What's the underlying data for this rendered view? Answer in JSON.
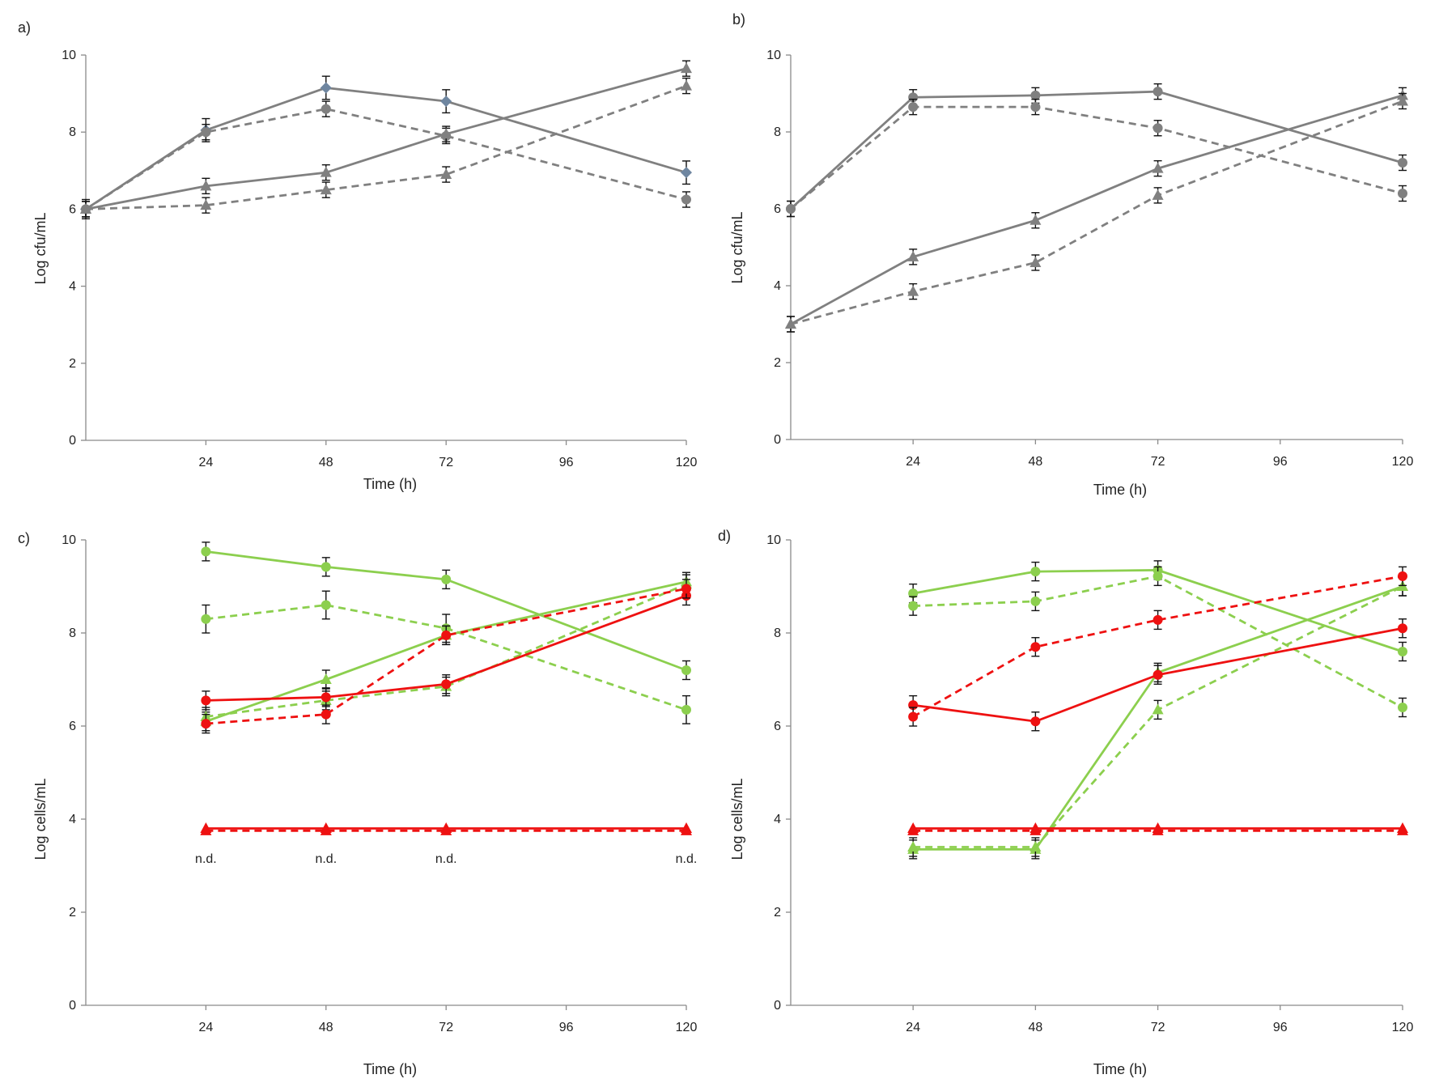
{
  "chart_data": [
    {
      "type": "line",
      "panel_label": "a)",
      "xlabel": "Time (h)",
      "ylabel": "Log cfu/mL",
      "xlim": [
        0,
        120
      ],
      "ylim": [
        0,
        10
      ],
      "xticks": [
        24,
        48,
        72,
        96,
        120
      ],
      "yticks": [
        0,
        2,
        4,
        6,
        8,
        10
      ],
      "notes": [],
      "series": [
        {
          "name": "series-1",
          "color": "#808080",
          "dash": "solid",
          "marker": "diamond",
          "marker_color": "#6f86a0",
          "x": [
            0,
            24,
            48,
            72,
            120
          ],
          "values": [
            6.0,
            8.05,
            9.15,
            8.8,
            6.95
          ],
          "errors": [
            0.25,
            0.3,
            0.3,
            0.3,
            0.3
          ]
        },
        {
          "name": "series-2",
          "color": "#808080",
          "dash": "dashed",
          "marker": "circle",
          "marker_color": "#808080",
          "x": [
            0,
            24,
            48,
            72,
            120
          ],
          "values": [
            6.0,
            8.0,
            8.6,
            7.9,
            6.25
          ],
          "errors": [
            0.2,
            0.2,
            0.2,
            0.2,
            0.2
          ]
        },
        {
          "name": "series-3",
          "color": "#808080",
          "dash": "solid",
          "marker": "triangle",
          "marker_color": "#808080",
          "x": [
            0,
            24,
            48,
            72,
            120
          ],
          "values": [
            6.0,
            6.6,
            6.95,
            7.95,
            9.65
          ],
          "errors": [
            0.2,
            0.2,
            0.2,
            0.2,
            0.2
          ]
        },
        {
          "name": "series-4",
          "color": "#808080",
          "dash": "dashed",
          "marker": "triangle",
          "marker_color": "#808080",
          "x": [
            0,
            24,
            48,
            72,
            120
          ],
          "values": [
            6.0,
            6.1,
            6.5,
            6.9,
            9.2
          ],
          "errors": [
            0.2,
            0.2,
            0.2,
            0.2,
            0.2
          ]
        }
      ]
    },
    {
      "type": "line",
      "panel_label": "b)",
      "xlabel": "Time (h)",
      "ylabel": "Log cfu/mL",
      "xlim": [
        0,
        120
      ],
      "ylim": [
        0,
        10
      ],
      "xticks": [
        24,
        48,
        72,
        96,
        120
      ],
      "yticks": [
        0,
        2,
        4,
        6,
        8,
        10
      ],
      "notes": [],
      "series": [
        {
          "name": "series-1",
          "color": "#808080",
          "dash": "solid",
          "marker": "circle",
          "marker_color": "#808080",
          "x": [
            0,
            24,
            48,
            72,
            120
          ],
          "values": [
            6.0,
            8.9,
            8.95,
            9.05,
            7.2
          ],
          "errors": [
            0.2,
            0.2,
            0.2,
            0.2,
            0.2
          ]
        },
        {
          "name": "series-2",
          "color": "#808080",
          "dash": "dashed",
          "marker": "circle",
          "marker_color": "#808080",
          "x": [
            0,
            24,
            48,
            72,
            120
          ],
          "values": [
            6.0,
            8.65,
            8.65,
            8.1,
            6.4
          ],
          "errors": [
            0.2,
            0.2,
            0.2,
            0.2,
            0.2
          ]
        },
        {
          "name": "series-3",
          "color": "#808080",
          "dash": "solid",
          "marker": "triangle",
          "marker_color": "#808080",
          "x": [
            0,
            24,
            48,
            72,
            120
          ],
          "values": [
            3.0,
            4.75,
            5.7,
            7.05,
            8.95
          ],
          "errors": [
            0.2,
            0.2,
            0.2,
            0.2,
            0.2
          ]
        },
        {
          "name": "series-4",
          "color": "#808080",
          "dash": "dashed",
          "marker": "triangle",
          "marker_color": "#808080",
          "x": [
            0,
            24,
            48,
            72,
            120
          ],
          "values": [
            3.0,
            3.85,
            4.6,
            6.35,
            8.8
          ],
          "errors": [
            0.2,
            0.2,
            0.2,
            0.2,
            0.2
          ]
        }
      ]
    },
    {
      "type": "line",
      "panel_label": "c)",
      "xlabel": "Time (h)",
      "ylabel": "Log cells/mL",
      "xlim": [
        0,
        120
      ],
      "ylim": [
        0,
        10
      ],
      "xticks": [
        24,
        48,
        72,
        96,
        120
      ],
      "yticks": [
        0,
        2,
        4,
        6,
        8,
        10
      ],
      "notes": [
        {
          "text": "n.d.",
          "x": 24,
          "y": 3.15
        },
        {
          "text": "n.d.",
          "x": 48,
          "y": 3.15
        },
        {
          "text": "n.d.",
          "x": 72,
          "y": 3.15
        },
        {
          "text": "n.d.",
          "x": 120,
          "y": 3.15
        }
      ],
      "series": [
        {
          "name": "green-solid-circle",
          "color": "#8ccf4e",
          "dash": "solid",
          "marker": "circle",
          "marker_color": "#8ccf4e",
          "x": [
            24,
            48,
            72,
            120
          ],
          "values": [
            9.75,
            9.42,
            9.15,
            7.2
          ],
          "errors": [
            0.2,
            0.2,
            0.2,
            0.2
          ]
        },
        {
          "name": "green-dashed-circle",
          "color": "#8ccf4e",
          "dash": "dashed",
          "marker": "circle",
          "marker_color": "#8ccf4e",
          "x": [
            24,
            48,
            72,
            120
          ],
          "values": [
            8.3,
            8.6,
            8.1,
            6.35
          ],
          "errors": [
            0.3,
            0.3,
            0.3,
            0.3
          ]
        },
        {
          "name": "green-solid-triangle",
          "color": "#8ccf4e",
          "dash": "solid",
          "marker": "triangle",
          "marker_color": "#8ccf4e",
          "x": [
            24,
            48,
            72,
            120
          ],
          "values": [
            6.1,
            7.0,
            7.95,
            9.1
          ],
          "errors": [
            0.2,
            0.2,
            0.2,
            0.2
          ]
        },
        {
          "name": "green-dashed-triangle",
          "color": "#8ccf4e",
          "dash": "dashed",
          "marker": "triangle",
          "marker_color": "#8ccf4e",
          "x": [
            24,
            48,
            72,
            120
          ],
          "values": [
            6.2,
            6.55,
            6.85,
            9.05
          ],
          "errors": [
            0.2,
            0.2,
            0.2,
            0.2
          ]
        },
        {
          "name": "red-solid-circle",
          "color": "#ee1111",
          "dash": "solid",
          "marker": "circle",
          "marker_color": "#ee1111",
          "x": [
            24,
            48,
            72,
            120
          ],
          "values": [
            6.55,
            6.62,
            6.9,
            8.8
          ],
          "errors": [
            0.2,
            0.2,
            0.2,
            0.2
          ]
        },
        {
          "name": "red-dashed-circle",
          "color": "#ee1111",
          "dash": "dashed",
          "marker": "circle",
          "marker_color": "#ee1111",
          "x": [
            24,
            48,
            72,
            120
          ],
          "values": [
            6.05,
            6.25,
            7.95,
            8.95
          ],
          "errors": [
            0.2,
            0.2,
            0.2,
            0.2
          ]
        },
        {
          "name": "red-solid-triangle",
          "color": "#ee1111",
          "dash": "solid",
          "marker": "triangle",
          "marker_color": "#ee1111",
          "x": [
            24,
            48,
            72,
            120
          ],
          "values": [
            3.8,
            3.8,
            3.8,
            3.8
          ],
          "errors": [
            0,
            0,
            0,
            0
          ]
        },
        {
          "name": "red-dashed-triangle",
          "color": "#ee1111",
          "dash": "dashed",
          "marker": "triangle",
          "marker_color": "#ee1111",
          "x": [
            24,
            48,
            72,
            120
          ],
          "values": [
            3.75,
            3.75,
            3.75,
            3.75
          ],
          "errors": [
            0,
            0,
            0,
            0
          ]
        }
      ]
    },
    {
      "type": "line",
      "panel_label": "d)",
      "xlabel": "Time (h)",
      "ylabel": "Log cells/mL",
      "xlim": [
        0,
        120
      ],
      "ylim": [
        0,
        10
      ],
      "xticks": [
        24,
        48,
        72,
        96,
        120
      ],
      "yticks": [
        0,
        2,
        4,
        6,
        8,
        10
      ],
      "notes": [],
      "series": [
        {
          "name": "green-solid-circle",
          "color": "#8ccf4e",
          "dash": "solid",
          "marker": "circle",
          "marker_color": "#8ccf4e",
          "x": [
            24,
            48,
            72,
            120
          ],
          "values": [
            8.85,
            9.32,
            9.35,
            7.6
          ],
          "errors": [
            0.2,
            0.2,
            0.2,
            0.2
          ]
        },
        {
          "name": "green-dashed-circle",
          "color": "#8ccf4e",
          "dash": "dashed",
          "marker": "circle",
          "marker_color": "#8ccf4e",
          "x": [
            24,
            48,
            72,
            120
          ],
          "values": [
            8.58,
            8.68,
            9.22,
            6.4
          ],
          "errors": [
            0.2,
            0.2,
            0.2,
            0.2
          ]
        },
        {
          "name": "green-solid-triangle",
          "color": "#8ccf4e",
          "dash": "solid",
          "marker": "triangle",
          "marker_color": "#8ccf4e",
          "x": [
            24,
            48,
            72,
            120
          ],
          "values": [
            3.35,
            3.35,
            7.15,
            9.0
          ],
          "errors": [
            0.2,
            0.2,
            0.2,
            0.2
          ]
        },
        {
          "name": "green-dashed-triangle",
          "color": "#8ccf4e",
          "dash": "dashed",
          "marker": "triangle",
          "marker_color": "#8ccf4e",
          "x": [
            24,
            48,
            72,
            120
          ],
          "values": [
            3.4,
            3.4,
            6.35,
            9.0
          ],
          "errors": [
            0.2,
            0.2,
            0.2,
            0.2
          ]
        },
        {
          "name": "red-solid-circle",
          "color": "#ee1111",
          "dash": "solid",
          "marker": "circle",
          "marker_color": "#ee1111",
          "x": [
            24,
            48,
            72,
            120
          ],
          "values": [
            6.45,
            6.1,
            7.1,
            8.1
          ],
          "errors": [
            0.2,
            0.2,
            0.2,
            0.2
          ]
        },
        {
          "name": "red-dashed-circle",
          "color": "#ee1111",
          "dash": "dashed",
          "marker": "circle",
          "marker_color": "#ee1111",
          "x": [
            24,
            48,
            72,
            120
          ],
          "values": [
            6.2,
            7.7,
            8.28,
            9.22
          ],
          "errors": [
            0.2,
            0.2,
            0.2,
            0.2
          ]
        },
        {
          "name": "red-solid-triangle",
          "color": "#ee1111",
          "dash": "solid",
          "marker": "triangle",
          "marker_color": "#ee1111",
          "x": [
            24,
            48,
            72,
            120
          ],
          "values": [
            3.8,
            3.8,
            3.8,
            3.8
          ],
          "errors": [
            0,
            0,
            0,
            0
          ]
        },
        {
          "name": "red-dashed-triangle",
          "color": "#ee1111",
          "dash": "dashed",
          "marker": "triangle",
          "marker_color": "#ee1111",
          "x": [
            24,
            48,
            72,
            120
          ],
          "values": [
            3.75,
            3.75,
            3.75,
            3.75
          ],
          "errors": [
            0,
            0,
            0,
            0
          ]
        }
      ]
    }
  ]
}
